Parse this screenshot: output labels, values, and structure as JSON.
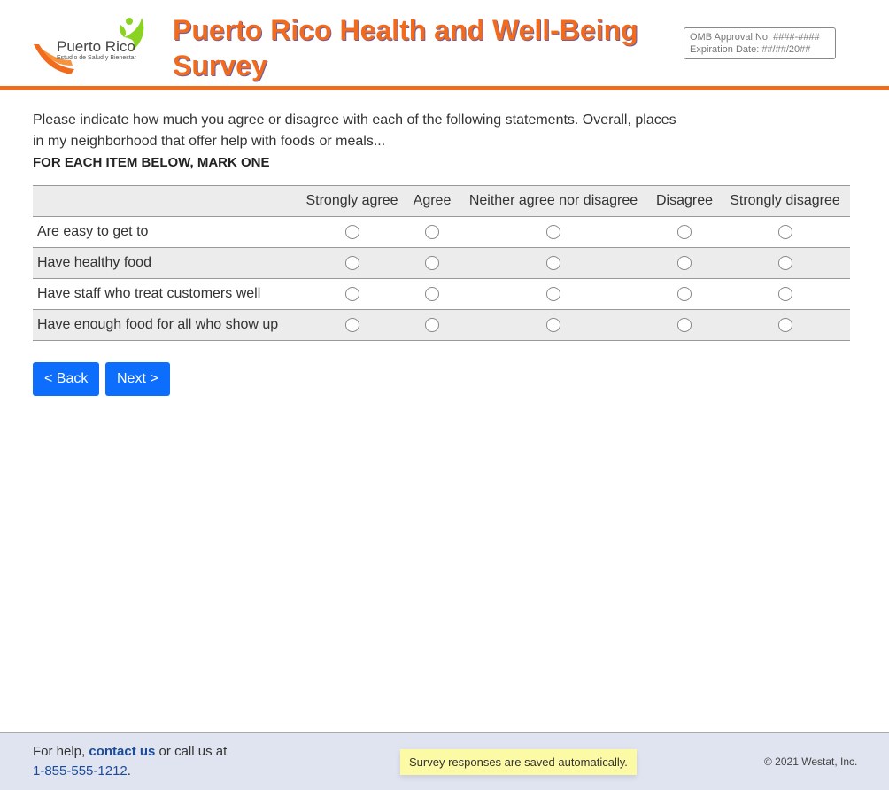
{
  "header": {
    "logo_text": "Puerto Rico",
    "logo_subtext": "Estudio de Salud y Bienestar",
    "title": "Puerto Rico Health and Well-Being Survey",
    "omb_line1": "OMB Approval No. ####-####",
    "omb_line2": "Expiration Date: ##/##/20##",
    "accent_color": "#f26b1d"
  },
  "question": {
    "text": "Please indicate how much you agree or disagree with each of the following statements. Overall, places in my neighborhood that offer help with foods or meals...",
    "instruction": "FOR EACH ITEM BELOW, MARK ONE"
  },
  "grid": {
    "columns": [
      "Strongly agree",
      "Agree",
      "Neither agree nor disagree",
      "Disagree",
      "Strongly disagree"
    ],
    "rows": [
      {
        "label": "Are easy to get to"
      },
      {
        "label": "Have healthy food"
      },
      {
        "label": "Have staff who treat customers well"
      },
      {
        "label": "Have enough food for all who show up"
      }
    ]
  },
  "nav": {
    "back_label": "< Back",
    "next_label": "Next >"
  },
  "footer": {
    "help_prefix": "For help, ",
    "contact_link": "contact us",
    "help_suffix": " or call us at",
    "phone": "1-855-555-1212",
    "phone_suffix": ".",
    "saved_notice": "Survey responses are saved automatically.",
    "copyright": "© 2021 Westat, Inc."
  }
}
